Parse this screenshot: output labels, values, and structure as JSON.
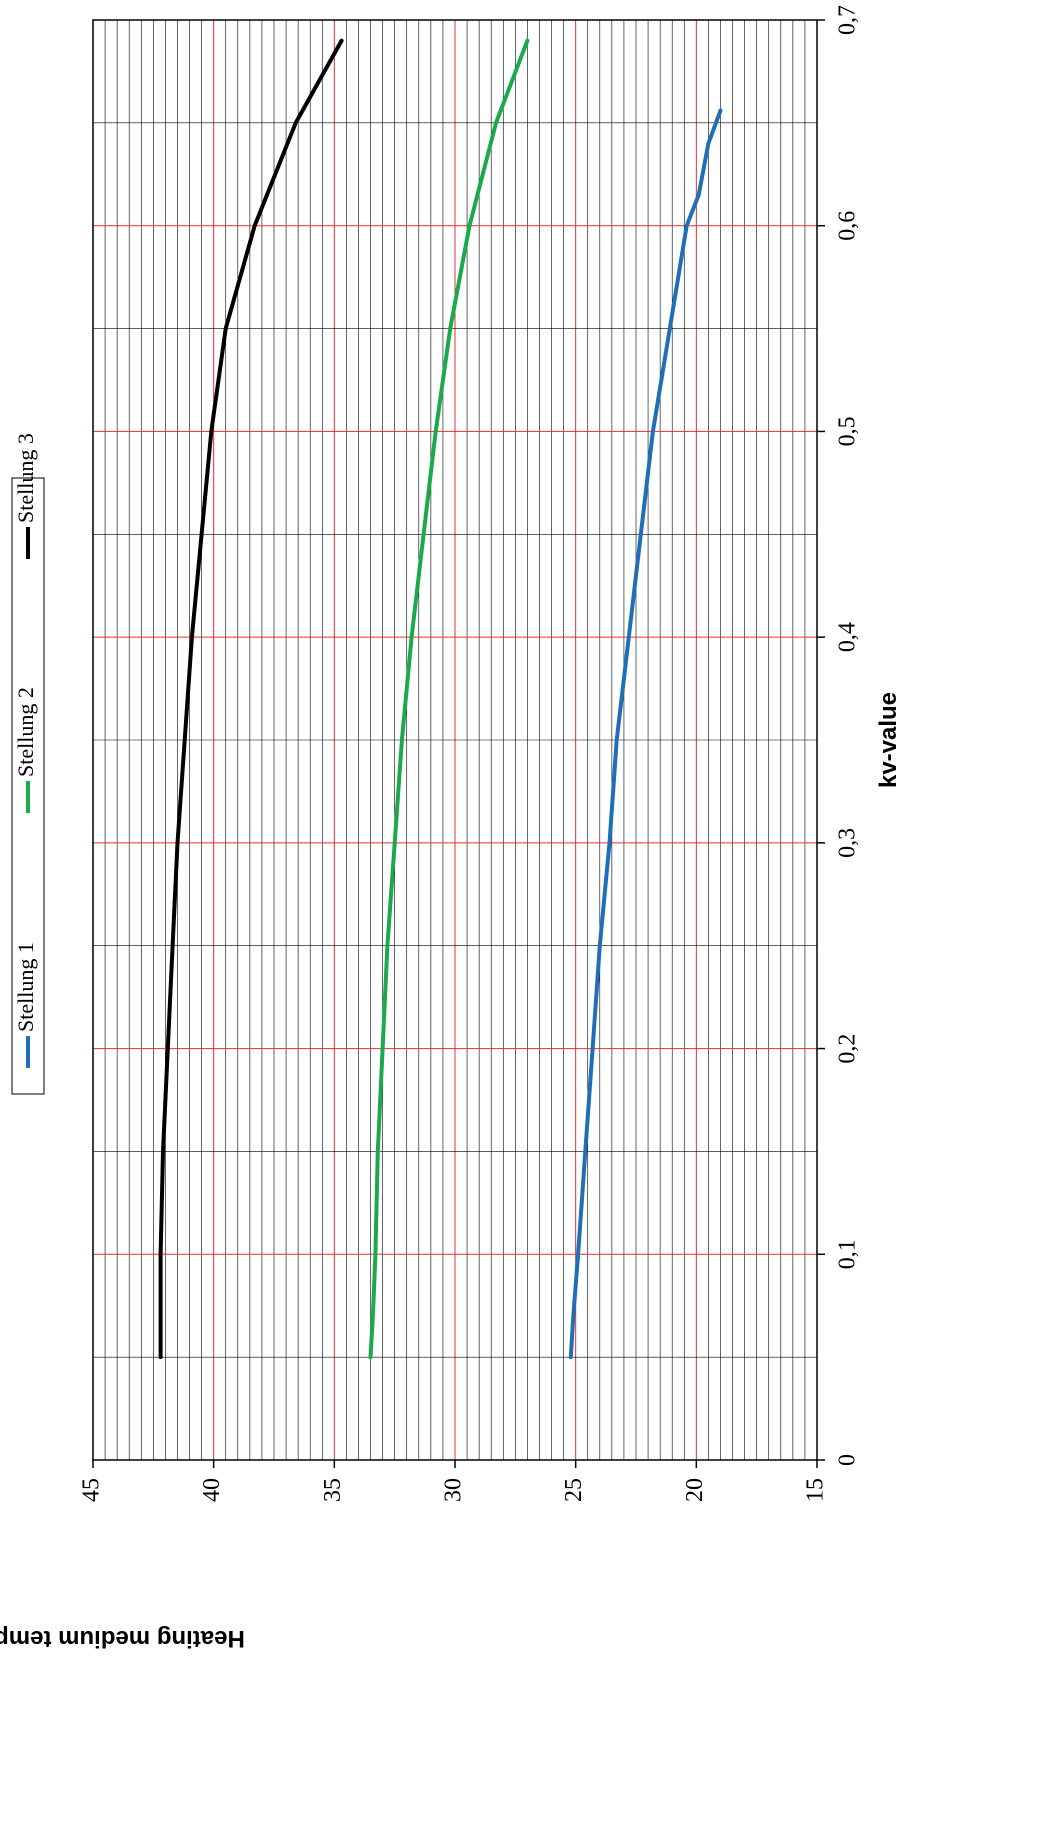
{
  "chart_data": {
    "type": "line",
    "orientation": "rotated-90",
    "xlabel": "kv-value",
    "ylabel": "Heating medium temperature [°C]",
    "xlim": [
      0,
      0.7
    ],
    "ylim": [
      15,
      45
    ],
    "x_ticks": [
      "0",
      "0,1",
      "0,2",
      "0,3",
      "0,4",
      "0,5",
      "0,6",
      "0,7"
    ],
    "y_ticks": [
      "45",
      "40",
      "35",
      "30",
      "25",
      "20",
      "15"
    ],
    "grid": true,
    "legend_position": "top",
    "series": [
      {
        "name": "Stellung 1",
        "color": "#1f6fb8",
        "x": [
          0.05,
          0.07,
          0.1,
          0.15,
          0.2,
          0.25,
          0.3,
          0.35,
          0.4,
          0.45,
          0.5,
          0.55,
          0.6,
          0.615,
          0.64,
          0.656
        ],
        "y": [
          25.2,
          25.1,
          24.9,
          24.6,
          24.3,
          24.0,
          23.6,
          23.3,
          22.8,
          22.3,
          21.8,
          21.1,
          20.4,
          19.9,
          19.5,
          19.0
        ]
      },
      {
        "name": "Stellung 2",
        "color": "#1aaa4a",
        "x": [
          0.05,
          0.07,
          0.1,
          0.15,
          0.2,
          0.25,
          0.3,
          0.35,
          0.4,
          0.45,
          0.5,
          0.55,
          0.6,
          0.65,
          0.69
        ],
        "y": [
          33.5,
          33.4,
          33.3,
          33.2,
          33.0,
          32.8,
          32.5,
          32.2,
          31.8,
          31.3,
          30.8,
          30.2,
          29.4,
          28.3,
          27.0
        ]
      },
      {
        "name": "Stellung 3",
        "color": "#000000",
        "x": [
          0.05,
          0.1,
          0.15,
          0.2,
          0.25,
          0.3,
          0.35,
          0.4,
          0.45,
          0.5,
          0.55,
          0.6,
          0.65,
          0.69
        ],
        "y": [
          42.2,
          42.2,
          42.1,
          41.9,
          41.7,
          41.5,
          41.2,
          40.9,
          40.5,
          40.1,
          39.5,
          38.3,
          36.6,
          34.7
        ]
      }
    ]
  }
}
